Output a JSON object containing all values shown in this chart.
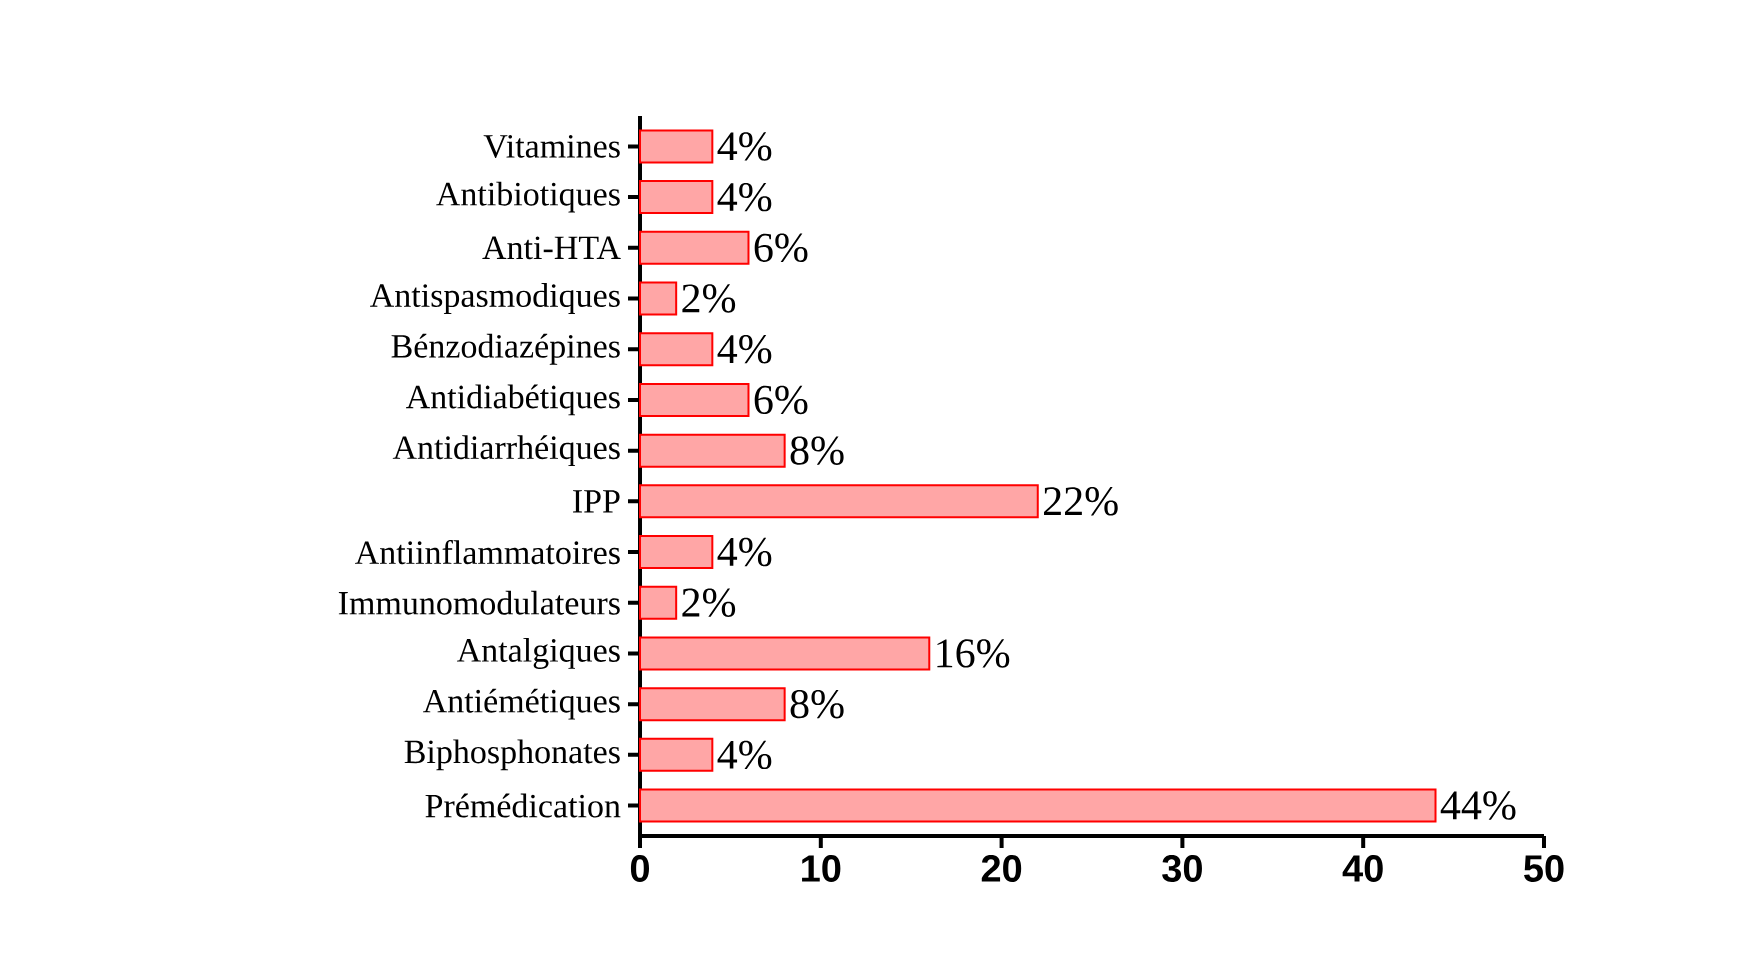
{
  "chart_data": {
    "type": "bar",
    "orientation": "horizontal",
    "categories": [
      "Vitamines",
      "Antibiotiques",
      "Anti-HTA",
      "Antispasmodiques",
      "Bénzodiazépines",
      "Antidiabétiques",
      "Antidiarrhéiques",
      "IPP",
      "Antiinflammatoires",
      "Immunomodulateurs",
      "Antalgiques",
      "Antiémétiques",
      "Biphosphonates",
      "Prémédication"
    ],
    "values": [
      4,
      4,
      6,
      2,
      4,
      6,
      8,
      22,
      4,
      2,
      16,
      8,
      4,
      44
    ],
    "value_labels": [
      "4%",
      "4%",
      "6%",
      "2%",
      "4%",
      "6%",
      "8%",
      "22%",
      "4%",
      "2%",
      "16%",
      "8%",
      "4%",
      "44%"
    ],
    "color": "#ff0000",
    "xlim": [
      0,
      50
    ],
    "xticks": [
      0,
      10,
      20,
      30,
      40,
      50
    ],
    "grid": false
  }
}
